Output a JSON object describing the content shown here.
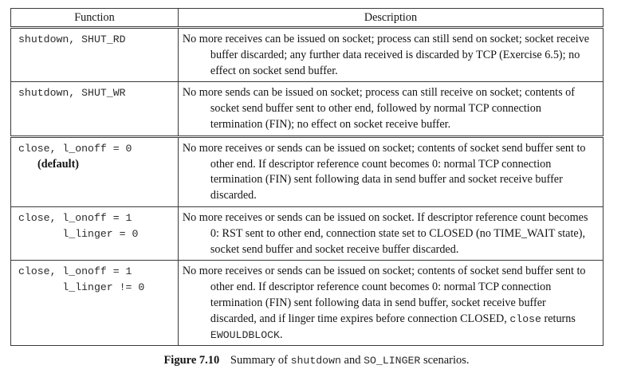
{
  "table": {
    "header": {
      "function": "Function",
      "description": "Description"
    },
    "rows": [
      {
        "fn_parts": [
          "shutdown, SHUT_RD"
        ],
        "note": "",
        "desc": [
          "No more receives can be issued on socket; process can still send on socket; socket receive buffer discarded; any further data received is discarded by TCP (Exercise 6.5); no effect on socket send buffer."
        ]
      },
      {
        "fn_parts": [
          "shutdown, SHUT_WR"
        ],
        "note": "",
        "desc": [
          "No more sends can be issued on socket; process can still receive on socket; contents of socket send buffer sent to other end, followed by normal TCP connection termination (FIN); no effect on socket receive buffer."
        ]
      },
      {
        "fn_parts": [
          "close, l_onoff = 0"
        ],
        "note": "(default)",
        "desc": [
          "No more receives or sends can be issued on socket; contents of socket send buffer sent to other end.  If descriptor reference count becomes 0: normal TCP connection termination (FIN) sent following data in send buffer and socket receive buffer discarded."
        ]
      },
      {
        "fn_parts": [
          "close, l_onoff = 1",
          "       l_linger = 0"
        ],
        "note": "",
        "desc": [
          "No more receives or sends can be issued on socket.  If descriptor reference count becomes 0: RST sent to other end, connection state set to CLOSED (no TIME_WAIT state), socket send buffer and socket receive buffer discarded."
        ]
      },
      {
        "fn_parts": [
          "close, l_onoff = 1",
          "       l_linger != 0"
        ],
        "note": "",
        "desc": [
          "No more receives or sends can be issued on socket; contents of socket send buffer sent to other end.  If descriptor reference count becomes 0: normal TCP connection termination (FIN) sent following data in send buffer, socket receive buffer discarded, and if linger time expires before connection CLOSED, ",
          "close",
          " returns ",
          "EWOULDBLOCK",
          "."
        ]
      }
    ]
  },
  "caption": {
    "label": "Figure 7.10",
    "pre": "Summary of",
    "code1": "shutdown",
    "mid": "and",
    "code2": "SO_LINGER",
    "post": "scenarios."
  }
}
